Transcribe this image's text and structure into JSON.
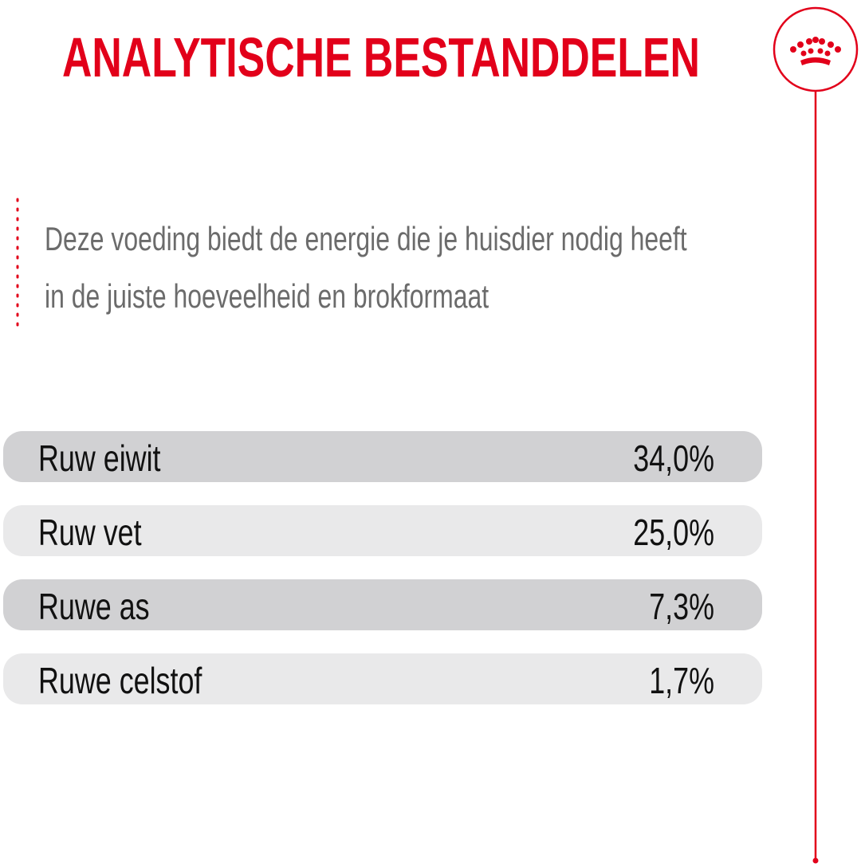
{
  "header": {
    "title": "ANALYTISCHE BESTANDDELEN"
  },
  "description": [
    "Deze voeding biedt de energie die je huisdier nodig heeft",
    "in de juiste hoeveelheid en brokformaat"
  ],
  "table": {
    "rows": [
      [
        "Ruw eiwit",
        "34,0%"
      ],
      [
        "Ruw vet",
        "25,0%"
      ],
      [
        "Ruwe as",
        "7,3%"
      ],
      [
        "Ruwe celstof",
        "1,7%"
      ]
    ]
  }
}
